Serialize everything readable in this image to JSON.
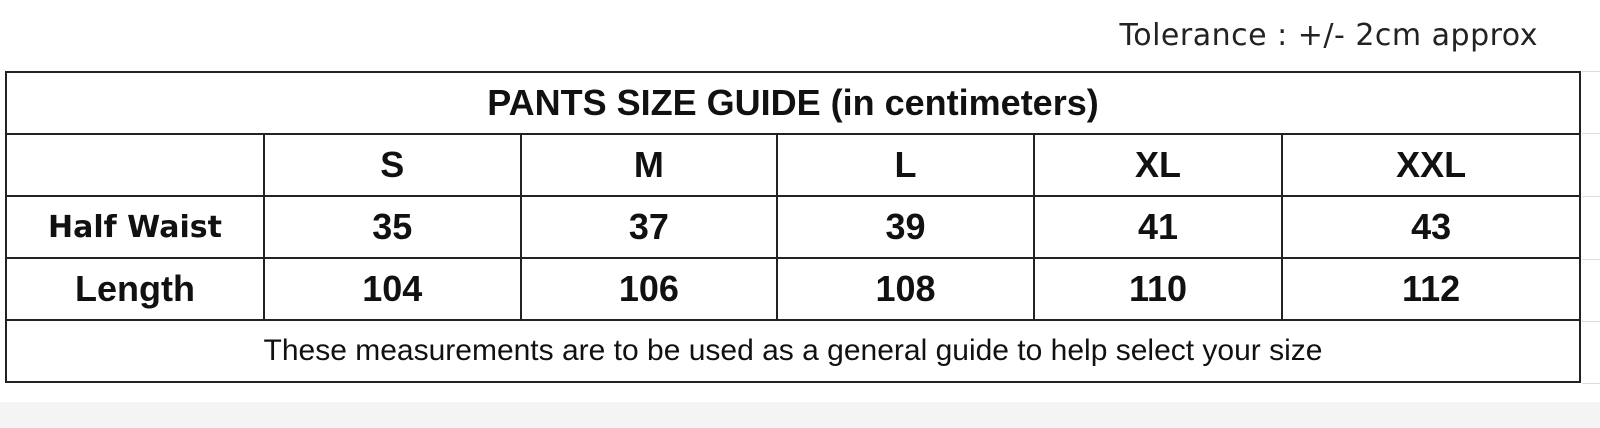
{
  "tolerance": "Tolerance : +/- 2cm approx",
  "table": {
    "title": "PANTS SIZE GUIDE (in centimeters)",
    "sizes": [
      "S",
      "M",
      "L",
      "XL",
      "XXL"
    ],
    "rows": [
      {
        "label": "Half Waist",
        "values": [
          "35",
          "37",
          "39",
          "41",
          "43"
        ]
      },
      {
        "label": "Length",
        "values": [
          "104",
          "106",
          "108",
          "110",
          "112"
        ]
      }
    ],
    "footer": "These measurements are to be used as a general guide to help select your size"
  }
}
